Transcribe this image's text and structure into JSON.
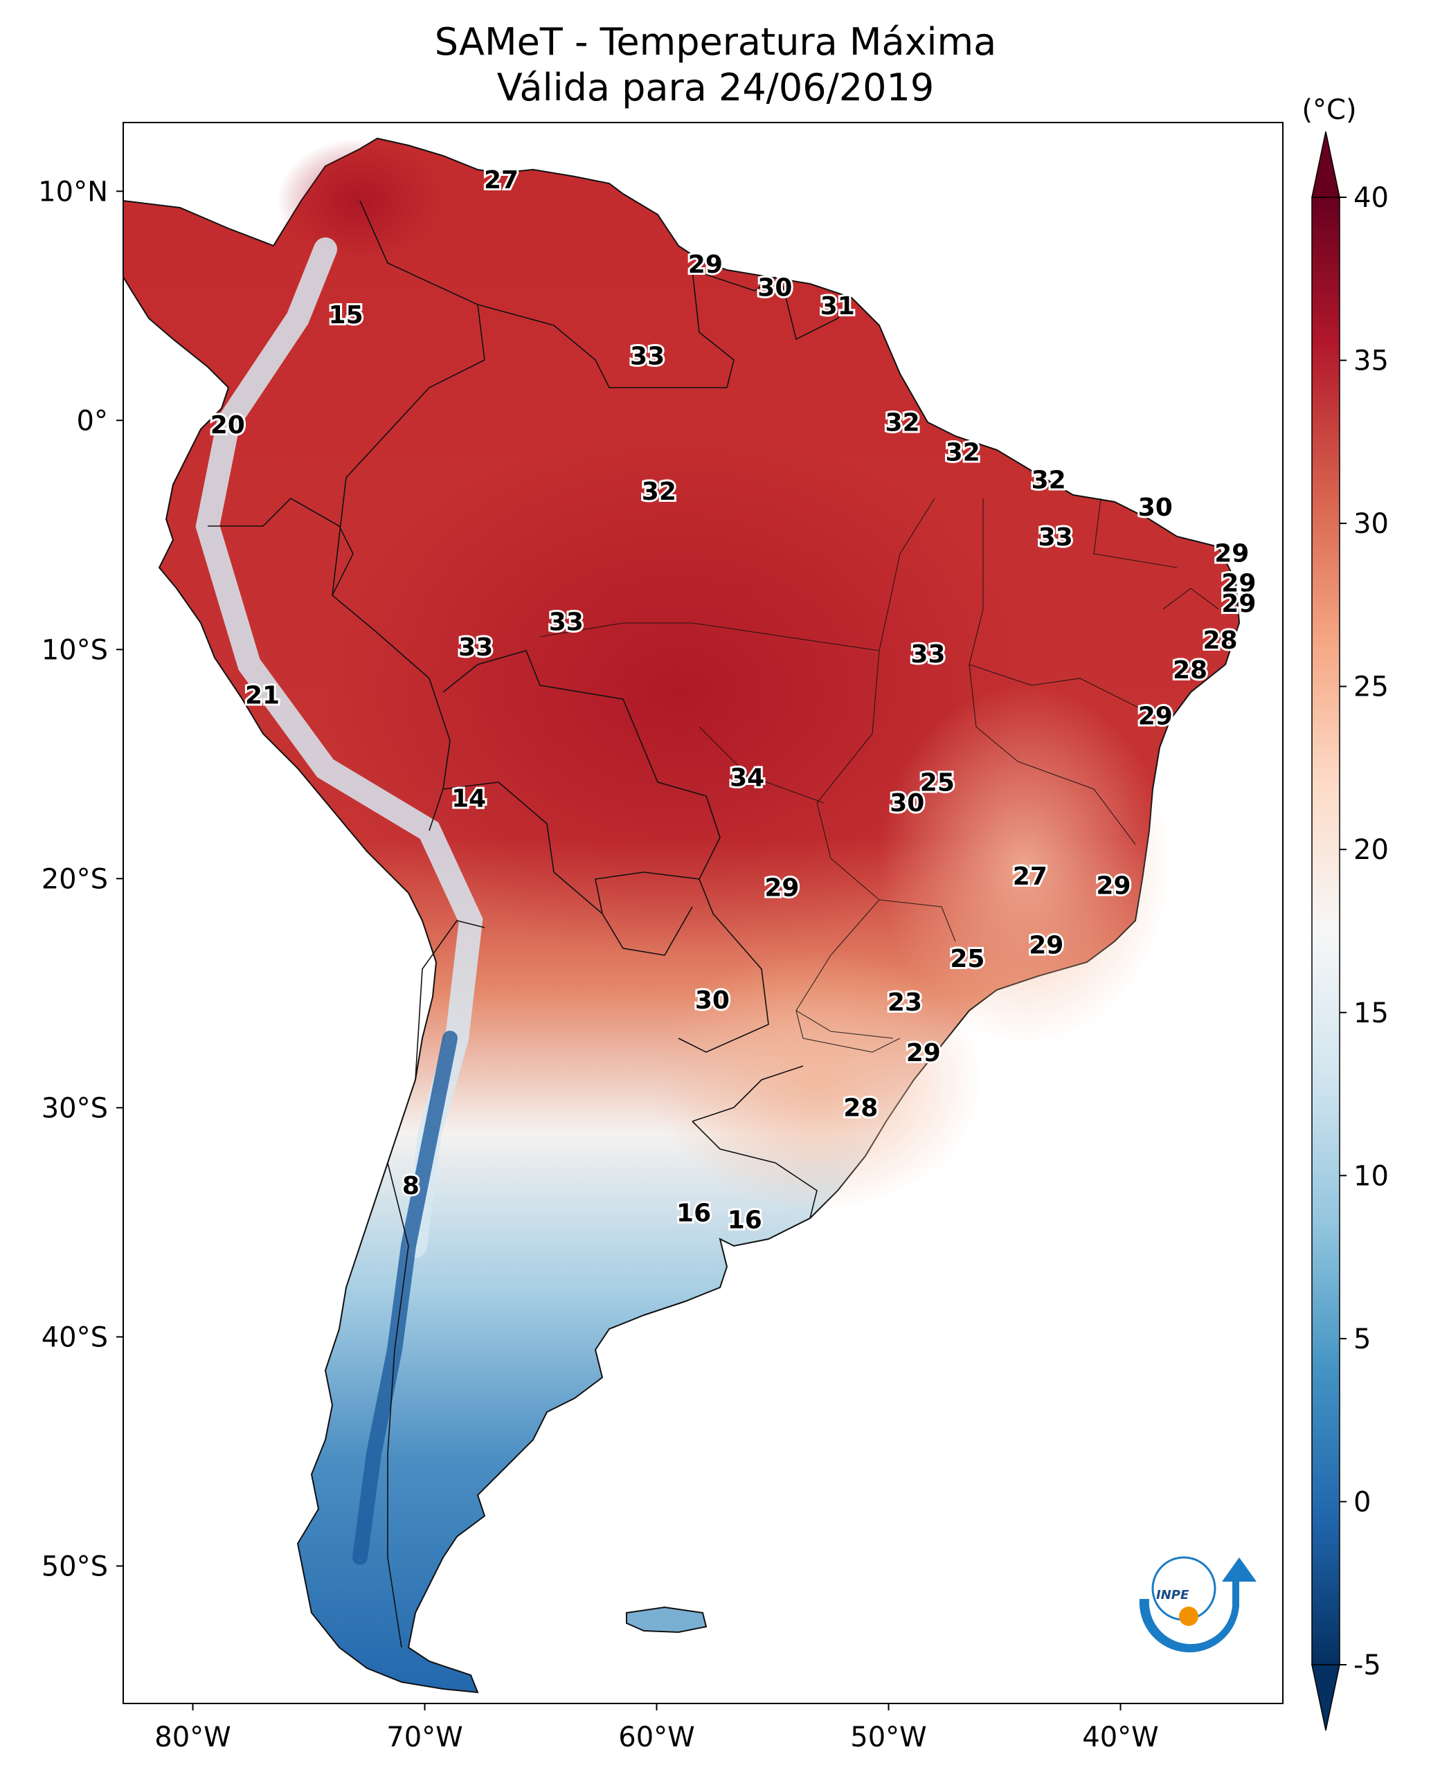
{
  "title": {
    "line1": "SAMeT - Temperatura Máxima",
    "line2": "Válida para 24/06/2019"
  },
  "map": {
    "lon_range": [
      -83,
      -33
    ],
    "lat_range": [
      -56,
      13
    ],
    "lon_ticks": [
      {
        "value": -80,
        "label": "80°W"
      },
      {
        "value": -70,
        "label": "70°W"
      },
      {
        "value": -60,
        "label": "60°W"
      },
      {
        "value": -50,
        "label": "50°W"
      },
      {
        "value": -40,
        "label": "40°W"
      }
    ],
    "lat_ticks": [
      {
        "value": 10,
        "label": "10°N"
      },
      {
        "value": 0,
        "label": "0°"
      },
      {
        "value": -10,
        "label": "10°S"
      },
      {
        "value": -20,
        "label": "20°S"
      },
      {
        "value": -30,
        "label": "30°S"
      },
      {
        "value": -40,
        "label": "40°S"
      },
      {
        "value": -50,
        "label": "50°S"
      }
    ],
    "city_labels": [
      {
        "lon": -66.7,
        "lat": 10.5,
        "value": "27"
      },
      {
        "lon": -57.9,
        "lat": 6.8,
        "value": "29"
      },
      {
        "lon": -54.9,
        "lat": 5.8,
        "value": "30"
      },
      {
        "lon": -52.2,
        "lat": 5.0,
        "value": "31"
      },
      {
        "lon": -73.4,
        "lat": 4.6,
        "value": "15"
      },
      {
        "lon": -60.4,
        "lat": 2.8,
        "value": "33"
      },
      {
        "lon": -49.4,
        "lat": -0.1,
        "value": "32"
      },
      {
        "lon": -78.5,
        "lat": -0.2,
        "value": "20"
      },
      {
        "lon": -46.8,
        "lat": -1.4,
        "value": "32"
      },
      {
        "lon": -43.1,
        "lat": -2.6,
        "value": "32"
      },
      {
        "lon": -59.9,
        "lat": -3.1,
        "value": "32"
      },
      {
        "lon": -38.5,
        "lat": -3.8,
        "value": "30"
      },
      {
        "lon": -42.8,
        "lat": -5.1,
        "value": "33"
      },
      {
        "lon": -35.2,
        "lat": -5.8,
        "value": "29"
      },
      {
        "lon": -34.9,
        "lat": -7.1,
        "value": "29"
      },
      {
        "lon": -34.9,
        "lat": -8.0,
        "value": "29"
      },
      {
        "lon": -63.9,
        "lat": -8.8,
        "value": "33"
      },
      {
        "lon": -67.8,
        "lat": -9.9,
        "value": "33"
      },
      {
        "lon": -35.7,
        "lat": -9.6,
        "value": "28"
      },
      {
        "lon": -48.3,
        "lat": -10.2,
        "value": "33"
      },
      {
        "lon": -37.0,
        "lat": -10.9,
        "value": "28"
      },
      {
        "lon": -77.0,
        "lat": -12.0,
        "value": "21"
      },
      {
        "lon": -38.5,
        "lat": -12.9,
        "value": "29"
      },
      {
        "lon": -56.1,
        "lat": -15.6,
        "value": "34"
      },
      {
        "lon": -47.9,
        "lat": -15.8,
        "value": "25"
      },
      {
        "lon": -49.2,
        "lat": -16.7,
        "value": "30"
      },
      {
        "lon": -68.1,
        "lat": -16.5,
        "value": "14"
      },
      {
        "lon": -43.9,
        "lat": -19.9,
        "value": "27"
      },
      {
        "lon": -40.3,
        "lat": -20.3,
        "value": "29"
      },
      {
        "lon": -54.6,
        "lat": -20.4,
        "value": "29"
      },
      {
        "lon": -43.2,
        "lat": -22.9,
        "value": "29"
      },
      {
        "lon": -46.6,
        "lat": -23.5,
        "value": "25"
      },
      {
        "lon": -57.6,
        "lat": -25.3,
        "value": "30"
      },
      {
        "lon": -49.3,
        "lat": -25.4,
        "value": "23"
      },
      {
        "lon": -48.5,
        "lat": -27.6,
        "value": "29"
      },
      {
        "lon": -51.2,
        "lat": -30.0,
        "value": "28"
      },
      {
        "lon": -70.6,
        "lat": -33.4,
        "value": "8"
      },
      {
        "lon": -58.4,
        "lat": -34.6,
        "value": "16"
      },
      {
        "lon": -56.2,
        "lat": -34.9,
        "value": "16"
      }
    ]
  },
  "colorbar": {
    "unit": "(°C)",
    "min": -5,
    "max": 40,
    "ticks": [
      {
        "value": 40,
        "label": "40"
      },
      {
        "value": 35,
        "label": "35"
      },
      {
        "value": 30,
        "label": "30"
      },
      {
        "value": 25,
        "label": "25"
      },
      {
        "value": 20,
        "label": "20"
      },
      {
        "value": 15,
        "label": "15"
      },
      {
        "value": 10,
        "label": "10"
      },
      {
        "value": 5,
        "label": "5"
      },
      {
        "value": 0,
        "label": "0"
      },
      {
        "value": -5,
        "label": "-5"
      }
    ],
    "colors": [
      "#053061",
      "#2166ac",
      "#4393c3",
      "#92c5de",
      "#d1e5f0",
      "#f7f7f7",
      "#fddbc7",
      "#f4a582",
      "#d6604d",
      "#b2182b",
      "#67001f"
    ]
  },
  "logo": {
    "text": "INPE",
    "color_blue": "#1a7cc4",
    "color_orange": "#f39200"
  }
}
